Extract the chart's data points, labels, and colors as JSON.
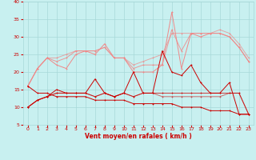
{
  "x": [
    0,
    1,
    2,
    3,
    4,
    5,
    6,
    7,
    8,
    9,
    10,
    11,
    12,
    13,
    14,
    15,
    16,
    17,
    18,
    19,
    20,
    21,
    22,
    23
  ],
  "line_light1": [
    16,
    21,
    24,
    22,
    21,
    25,
    26,
    25,
    28,
    24,
    24,
    20,
    20,
    20,
    22,
    37,
    21,
    31,
    30,
    31,
    31,
    30,
    27,
    23
  ],
  "line_light2": [
    16,
    21,
    24,
    23,
    24,
    26,
    26,
    26,
    27,
    24,
    24,
    21,
    22,
    22,
    22,
    32,
    26,
    31,
    31,
    31,
    31,
    30,
    27,
    23
  ],
  "line_light3": [
    16,
    21,
    24,
    24,
    25,
    26,
    26,
    26,
    27,
    24,
    24,
    22,
    23,
    24,
    25,
    31,
    31,
    31,
    31,
    31,
    32,
    31,
    28,
    24
  ],
  "line_dark1": [
    10,
    12,
    13,
    15,
    14,
    14,
    14,
    18,
    14,
    13,
    14,
    20,
    14,
    14,
    26,
    20,
    19,
    22,
    17,
    14,
    14,
    17,
    8,
    8
  ],
  "line_dark2": [
    10,
    12,
    13,
    14,
    14,
    14,
    14,
    13,
    14,
    13,
    14,
    13,
    14,
    14,
    14,
    14,
    14,
    14,
    14,
    14,
    14,
    14,
    14,
    8
  ],
  "line_dark3": [
    10,
    12,
    13,
    14,
    14,
    14,
    14,
    13,
    14,
    13,
    14,
    13,
    14,
    14,
    13,
    13,
    13,
    13,
    13,
    13,
    13,
    14,
    14,
    8
  ],
  "line_down": [
    16,
    14,
    14,
    13,
    13,
    13,
    13,
    12,
    12,
    12,
    12,
    11,
    11,
    11,
    11,
    11,
    10,
    10,
    10,
    9,
    9,
    9,
    8,
    8
  ],
  "background_color": "#c8f0f0",
  "grid_color": "#a8d8d8",
  "line_light_color": "#f08888",
  "line_dark_color": "#cc0000",
  "xlabel": "Vent moyen/en rafales ( km/h )",
  "ylim": [
    5,
    40
  ],
  "xlim": [
    -0.5,
    23.5
  ],
  "yticks": [
    5,
    10,
    15,
    20,
    25,
    30,
    35,
    40
  ],
  "xticks": [
    0,
    1,
    2,
    3,
    4,
    5,
    6,
    7,
    8,
    9,
    10,
    11,
    12,
    13,
    14,
    15,
    16,
    17,
    18,
    19,
    20,
    21,
    22,
    23
  ]
}
